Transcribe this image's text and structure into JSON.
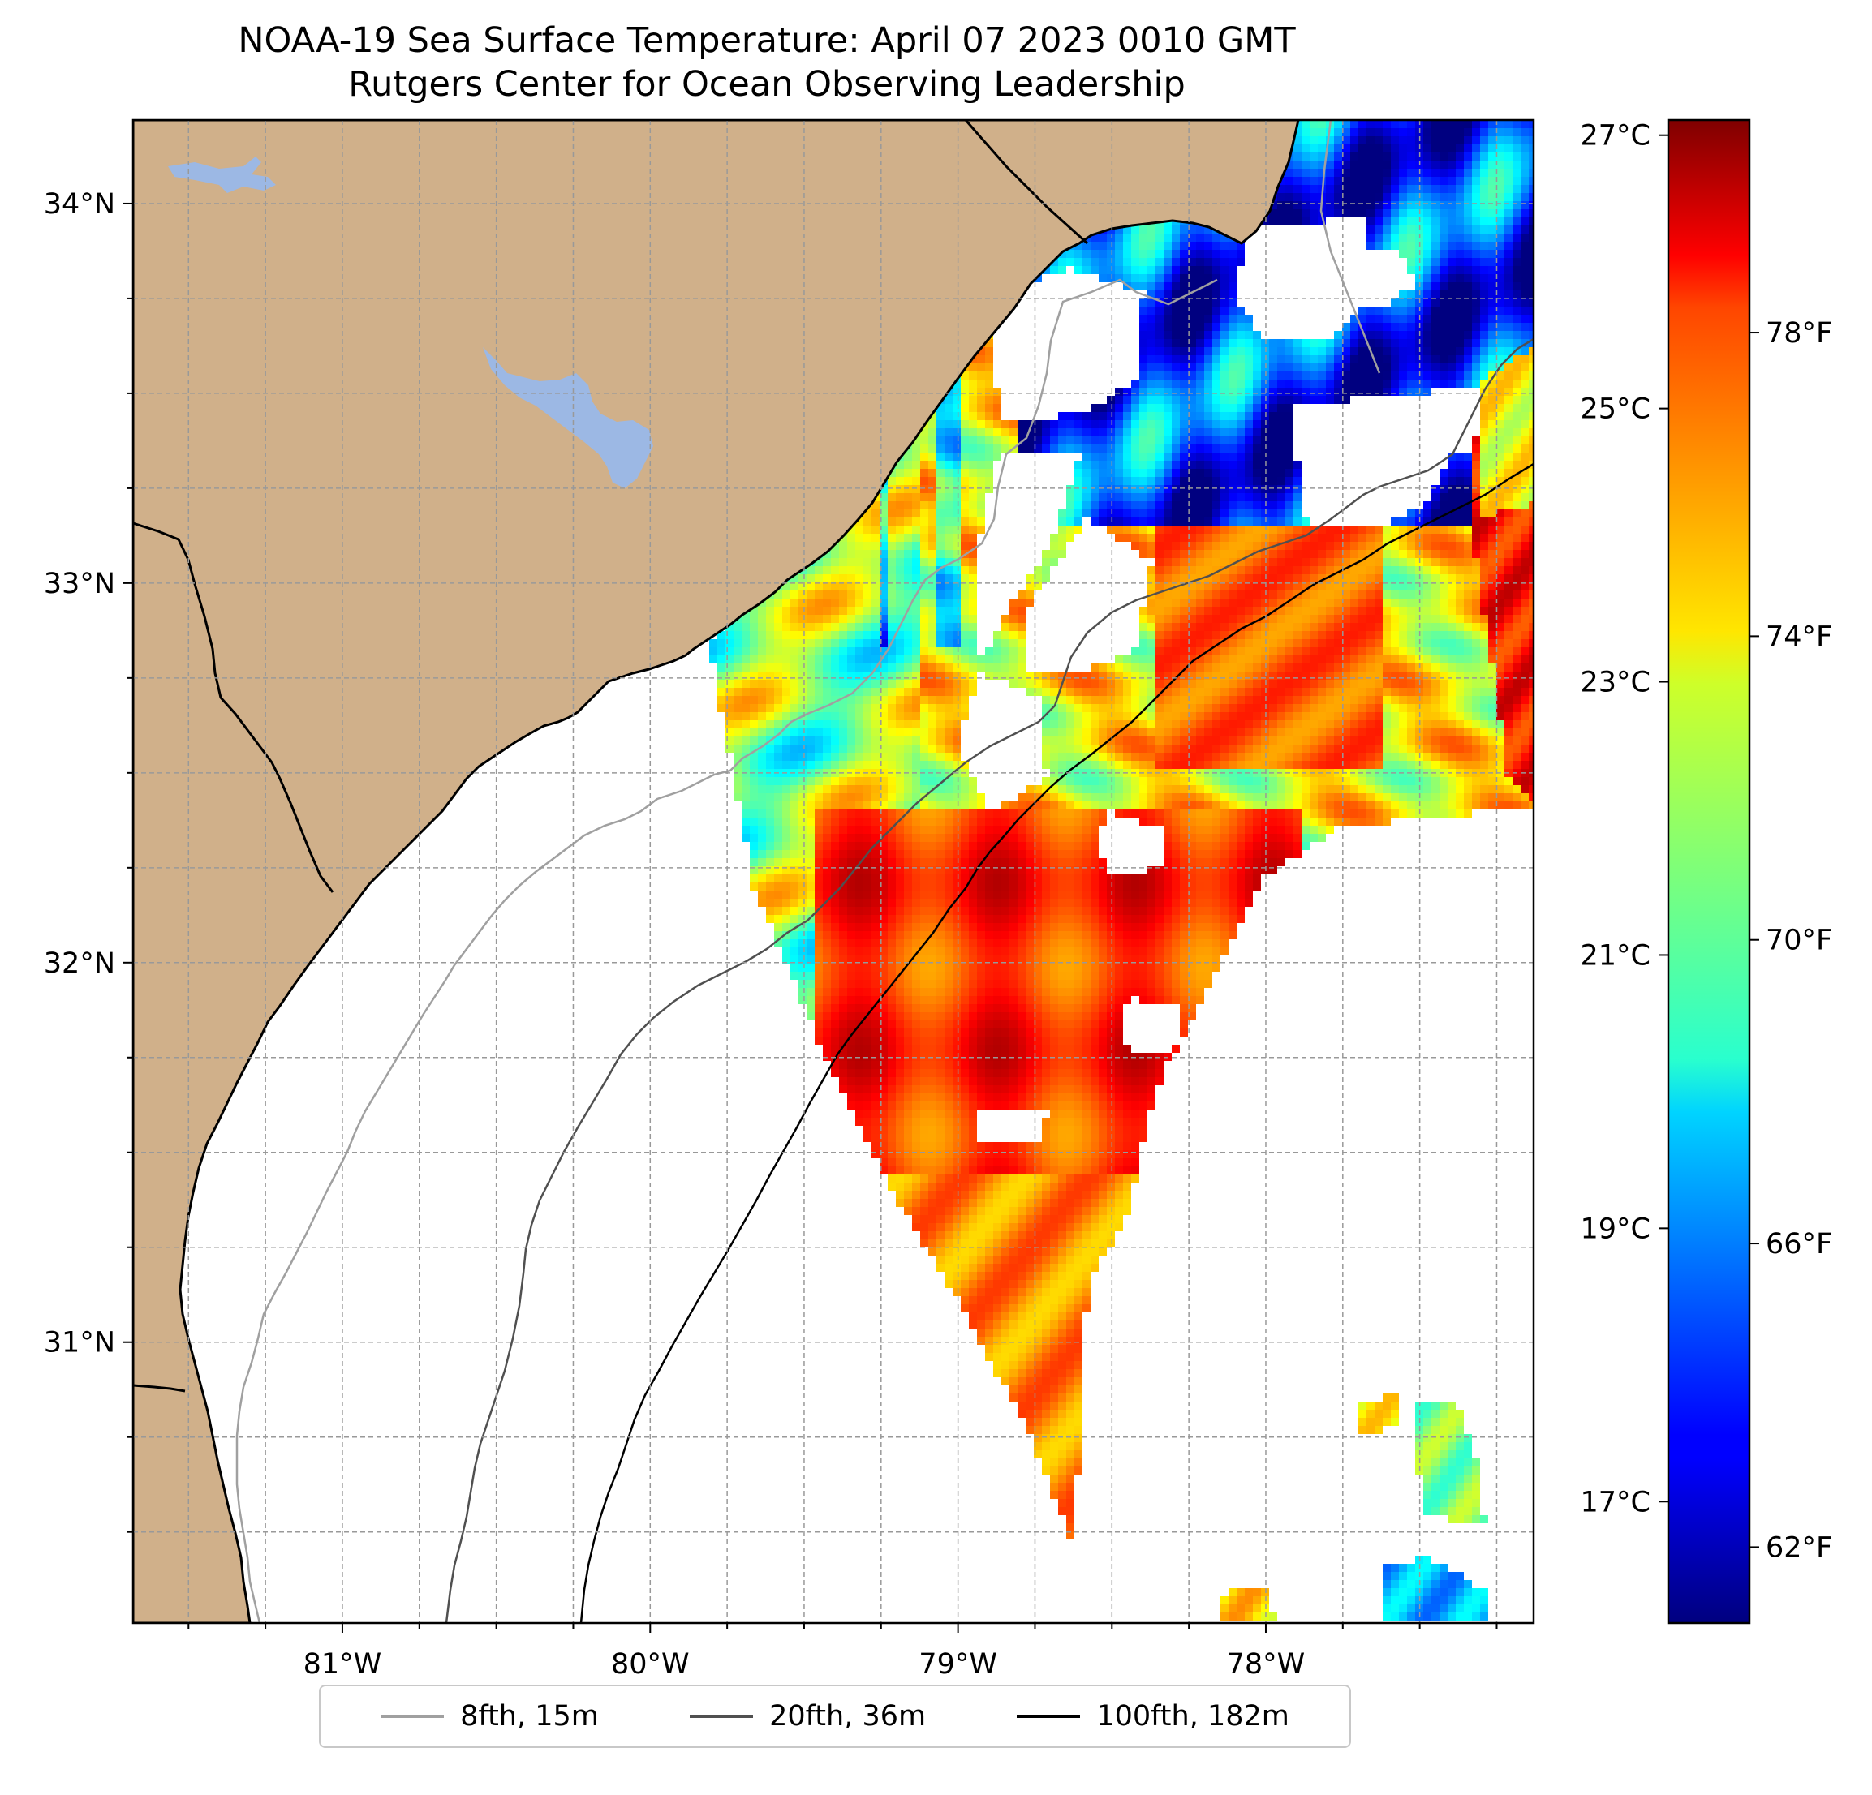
{
  "title": {
    "line1": "NOAA-19 Sea Surface Temperature: April 07 2023 0010 GMT",
    "line2": "Rutgers Center for Ocean Observing Leadership"
  },
  "map": {
    "lon_range": [
      -81.68,
      -77.13
    ],
    "lat_range": [
      30.26,
      34.22
    ],
    "land_color": "#d0b08a",
    "water_body_color": "#9cb8e4",
    "lat_ticks": [
      {
        "value": 34,
        "label": "34°N"
      },
      {
        "value": 33,
        "label": "33°N"
      },
      {
        "value": 32,
        "label": "32°N"
      },
      {
        "value": 31,
        "label": "31°N"
      }
    ],
    "lon_ticks": [
      {
        "value": -81,
        "label": "81°W"
      },
      {
        "value": -80,
        "label": "80°W"
      },
      {
        "value": -79,
        "label": "79°W"
      },
      {
        "value": -78,
        "label": "78°W"
      }
    ],
    "grid": true
  },
  "colorbar": {
    "colormap": "jet",
    "range_f": [
      61.0,
      80.8
    ],
    "celsius_ticks": [
      {
        "value": 27,
        "label": "27°C"
      },
      {
        "value": 25,
        "label": "25°C"
      },
      {
        "value": 23,
        "label": "23°C"
      },
      {
        "value": 21,
        "label": "21°C"
      },
      {
        "value": 19,
        "label": "19°C"
      },
      {
        "value": 17,
        "label": "17°C"
      }
    ],
    "fahrenheit_ticks": [
      {
        "value": 78,
        "label": "78°F"
      },
      {
        "value": 74,
        "label": "74°F"
      },
      {
        "value": 70,
        "label": "70°F"
      },
      {
        "value": 66,
        "label": "66°F"
      },
      {
        "value": 62,
        "label": "62°F"
      }
    ]
  },
  "legend": {
    "items": [
      {
        "label": "8fth, 15m",
        "color": "#a0a0a0"
      },
      {
        "label": "20fth, 36m",
        "color": "#505050"
      },
      {
        "label": "100fth, 182m",
        "color": "#000000"
      }
    ]
  }
}
